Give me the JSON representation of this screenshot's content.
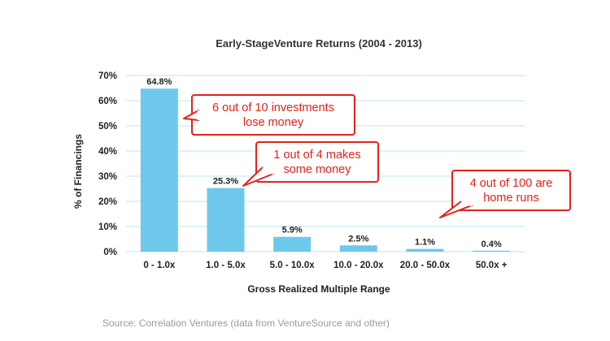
{
  "chart_data": {
    "type": "bar",
    "title": "Early-StageVenture Returns (2004 - 2013)",
    "xlabel": "Gross Realized Multiple Range",
    "ylabel": "% of Financings",
    "categories": [
      "0 - 1.0x",
      "1.0 - 5.0x",
      "5.0 - 10.0x",
      "10.0 - 20.0x",
      "20.0 - 50.0x",
      "50.0x +"
    ],
    "values": [
      64.8,
      25.3,
      5.9,
      2.5,
      1.1,
      0.4
    ],
    "value_labels": [
      "64.8%",
      "25.3%",
      "5.9%",
      "2.5%",
      "1.1%",
      "0.4%"
    ],
    "ylim": [
      0,
      70
    ],
    "yticks": [
      "0%",
      "10%",
      "20%",
      "30%",
      "40%",
      "50%",
      "60%",
      "70%"
    ],
    "grid": true,
    "bar_color": "#6ec8ec",
    "grid_color": "#bfe3f3",
    "annotations": [
      {
        "lines": [
          "6 out of 10 investments",
          "lose money"
        ]
      },
      {
        "lines": [
          "1 out of 4 makes",
          "some money"
        ]
      },
      {
        "lines": [
          "4 out of 100 are",
          "home runs"
        ]
      }
    ],
    "annotation_color": "#e2231a"
  },
  "source": "Source: Correlation Ventures (data from VentureSource and other)"
}
